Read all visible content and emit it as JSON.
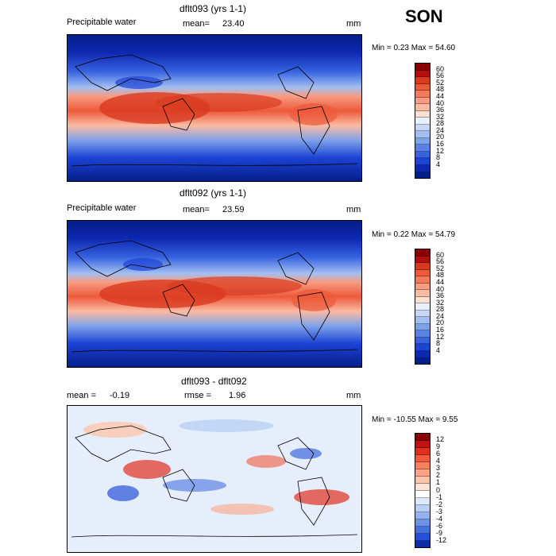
{
  "season": "SON",
  "panels": [
    {
      "title": "dflt093 (yrs 1-1)",
      "field_label": "Precipitable water",
      "mean_label": "mean=",
      "mean_value": "23.40",
      "units": "mm",
      "range_text": "Min =    0.23  Max =   54.60",
      "colorbar": {
        "colors": [
          "#8b0000",
          "#b40f0f",
          "#d93a1f",
          "#ec5a3a",
          "#f27a5a",
          "#f89b80",
          "#fbbaa3",
          "#fde0d2",
          "#e8f0fb",
          "#c6d8f5",
          "#a3bff0",
          "#7ea2ea",
          "#5a82e6",
          "#3763e0",
          "#1c43d4",
          "#0d28b0",
          "#041e8a"
        ],
        "ticks": [
          "60",
          "56",
          "52",
          "48",
          "44",
          "40",
          "36",
          "32",
          "28",
          "24",
          "20",
          "16",
          "12",
          "8",
          "4"
        ]
      }
    },
    {
      "title": "dflt092 (yrs 1-1)",
      "field_label": "Precipitable water",
      "mean_label": "mean=",
      "mean_value": "23.59",
      "units": "mm",
      "range_text": "Min =    0.22  Max =   54.79",
      "colorbar": {
        "colors": [
          "#8b0000",
          "#b40f0f",
          "#d93a1f",
          "#ec5a3a",
          "#f27a5a",
          "#f89b80",
          "#fbbaa3",
          "#fde0d2",
          "#e8f0fb",
          "#c6d8f5",
          "#a3bff0",
          "#7ea2ea",
          "#5a82e6",
          "#3763e0",
          "#1c43d4",
          "#0d28b0",
          "#041e8a"
        ],
        "ticks": [
          "60",
          "56",
          "52",
          "48",
          "44",
          "40",
          "36",
          "32",
          "28",
          "24",
          "20",
          "16",
          "12",
          "8",
          "4"
        ]
      }
    },
    {
      "title": "dflt093 - dflt092",
      "mean_label": "mean =",
      "mean_value": "-0.19",
      "rmse_label": "rmse =",
      "rmse_value": "1.96",
      "units": "mm",
      "range_text": "Min = -10.55  Max =    9.55",
      "colorbar": {
        "colors": [
          "#8b0000",
          "#c01414",
          "#e03020",
          "#f25a3c",
          "#f7805f",
          "#fba585",
          "#fcc6ad",
          "#fde4d6",
          "#ffffff",
          "#dce8fb",
          "#b9cff5",
          "#93b2ef",
          "#6c92ea",
          "#4671e3",
          "#2550d8",
          "#0b2da8"
        ],
        "ticks": [
          "12",
          "9",
          "6",
          "4",
          "3",
          "2",
          "1",
          "0",
          "-1",
          "-2",
          "-3",
          "-4",
          "-6",
          "-9",
          "-12"
        ]
      }
    }
  ]
}
